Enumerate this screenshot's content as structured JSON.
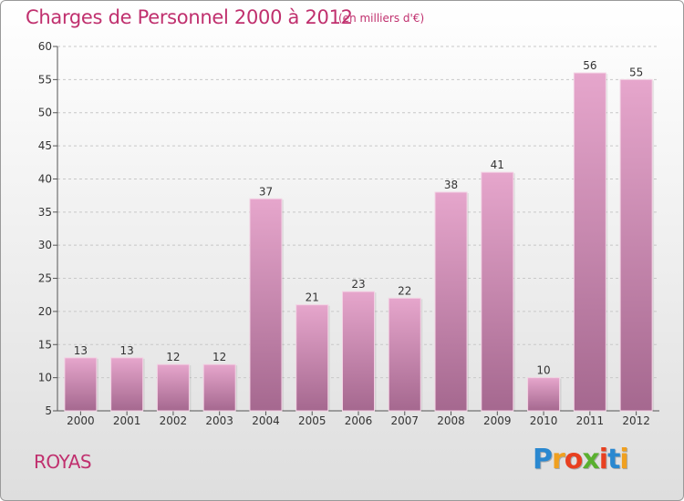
{
  "header": {
    "title": "Charges de Personnel 2000 à 2012",
    "unit": "(en milliers d'€)"
  },
  "footer": {
    "commune": "ROYAS",
    "logo_text": "Proxiti"
  },
  "colors": {
    "accent": "#c0306e",
    "bar_top": "#e6a6cc",
    "bar_bottom": "#a5688f",
    "logo": [
      "#2a88d0",
      "#f0a020",
      "#e84020",
      "#5ab030",
      "#e84020",
      "#2a88d0",
      "#f0a020"
    ]
  },
  "chart_data": {
    "type": "bar",
    "categories": [
      "2000",
      "2001",
      "2002",
      "2003",
      "2004",
      "2005",
      "2006",
      "2007",
      "2008",
      "2009",
      "2010",
      "2011",
      "2012"
    ],
    "values": [
      13,
      13,
      12,
      12,
      37,
      21,
      23,
      22,
      38,
      41,
      10,
      56,
      55
    ],
    "title": "Charges de Personnel 2000 à 2012",
    "ylim": [
      5,
      60
    ],
    "yticks": [
      5,
      10,
      15,
      20,
      25,
      30,
      35,
      40,
      45,
      50,
      55,
      60
    ],
    "grid": true,
    "data_labels": true
  }
}
